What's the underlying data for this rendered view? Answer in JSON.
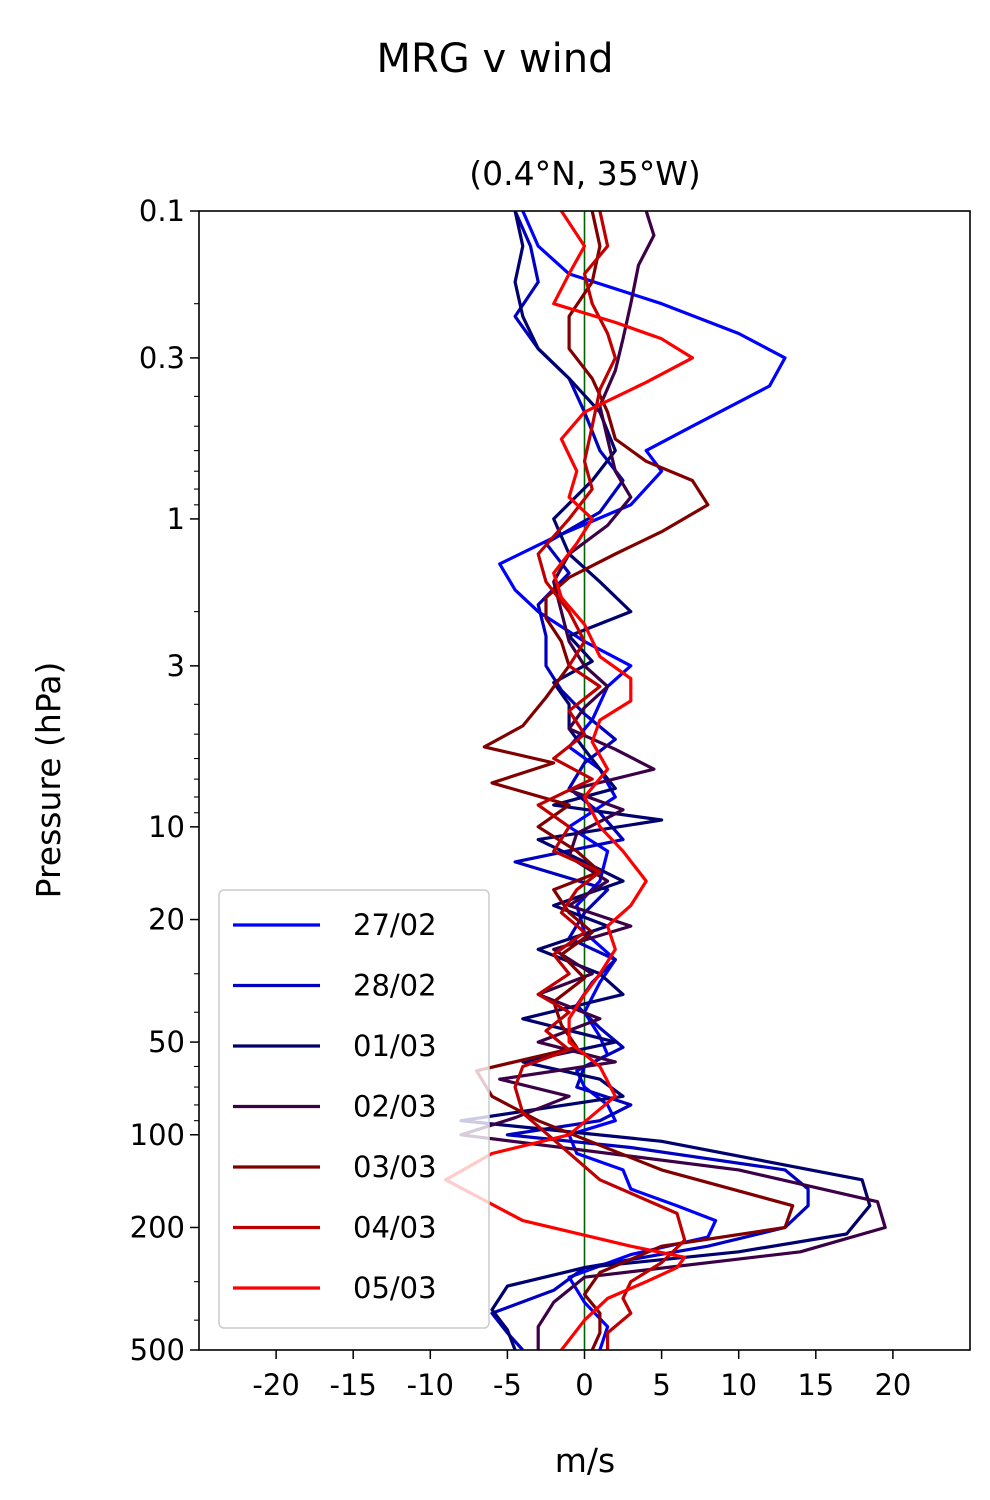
{
  "chart_data": {
    "type": "line",
    "suptitle": "MRG v wind",
    "title": "(0.4°N, 35°W)",
    "xlabel": "m/s",
    "ylabel": "Pressure (hPa)",
    "xlim": [
      -25,
      25
    ],
    "ylim": [
      500,
      0.1
    ],
    "yscale": "log",
    "xticks": [
      -20,
      -15,
      -10,
      -5,
      0,
      5,
      10,
      15,
      20
    ],
    "xtick_labels": [
      "-20",
      "-15",
      "-10",
      "-5",
      "0",
      "5",
      "10",
      "15",
      "20"
    ],
    "yticks": [
      0.1,
      0.3,
      1,
      3,
      10,
      20,
      50,
      100,
      200,
      500
    ],
    "ytick_labels": [
      "0.1",
      "0.3",
      "1",
      "3",
      "10",
      "20",
      "50",
      "100",
      "200",
      "500"
    ],
    "zero_line_color": "#006400",
    "legend_position": "lower-left",
    "series": [
      {
        "name": "27/02",
        "color": "#0000ff",
        "v": [
          -4,
          -3,
          -1,
          5,
          10,
          13,
          12,
          7,
          4,
          5,
          3,
          -2,
          -5.5,
          -4.5,
          -3,
          0,
          3,
          1.5,
          0.5,
          -1,
          1,
          2,
          -1,
          1.5,
          1,
          -0.5,
          0,
          2,
          1,
          0,
          1,
          1.5,
          -0.5,
          0,
          1.5,
          2,
          -1,
          -0.5,
          2.5,
          3,
          6,
          8.5,
          8,
          3,
          -1,
          0,
          1.5,
          1
        ],
        "p": [
          0.1,
          0.13,
          0.16,
          0.2,
          0.25,
          0.3,
          0.37,
          0.5,
          0.6,
          0.7,
          0.9,
          1.15,
          1.4,
          1.7,
          2,
          2.5,
          3,
          3.5,
          4.5,
          5.5,
          6.5,
          8,
          10,
          12,
          15,
          18,
          22,
          27,
          32,
          40,
          48,
          55,
          62,
          70,
          80,
          90,
          100,
          115,
          130,
          150,
          170,
          190,
          215,
          245,
          290,
          350,
          420,
          500
        ]
      },
      {
        "name": "28/02",
        "color": "#0000c0",
        "v": [
          -4.5,
          -3.5,
          -3,
          -4.5,
          -3,
          -1,
          0,
          1,
          2.5,
          1,
          -2.5,
          -1,
          -3,
          -2.5,
          -2.5,
          -1.5,
          0,
          2,
          0,
          -1,
          1,
          2.5,
          -4.5,
          1.5,
          0,
          -1,
          2,
          0.5,
          -0.5,
          1,
          2.5,
          0,
          -0.5,
          3,
          1,
          -5,
          3,
          13,
          14.5,
          14.5,
          13,
          8,
          0,
          -2,
          -6,
          -5,
          -4
        ],
        "p": [
          0.1,
          0.13,
          0.17,
          0.22,
          0.28,
          0.35,
          0.45,
          0.6,
          0.75,
          0.95,
          1.2,
          1.5,
          1.9,
          2.4,
          3,
          3.6,
          4.3,
          5.2,
          6.2,
          7.5,
          9,
          11,
          13,
          16,
          19,
          23,
          27,
          32,
          38,
          45,
          52,
          60,
          70,
          80,
          90,
          100,
          110,
          130,
          150,
          170,
          200,
          230,
          270,
          320,
          380,
          440,
          500
        ]
      },
      {
        "name": "01/03",
        "color": "#00006e",
        "v": [
          -4.5,
          -4,
          -4.5,
          -4,
          -3,
          -1,
          1,
          2,
          0.5,
          -2,
          -1,
          1,
          3,
          -1,
          0.5,
          -2,
          -1,
          -1,
          0,
          1,
          2,
          -2,
          5,
          -3,
          0,
          2.5,
          -2,
          1.5,
          -3,
          1,
          2.5,
          -4,
          2,
          -4,
          1,
          2.5,
          -8,
          5,
          18,
          18.5,
          17,
          10,
          0,
          -5,
          -6,
          -5,
          -4.5
        ],
        "p": [
          0.1,
          0.13,
          0.17,
          0.22,
          0.28,
          0.35,
          0.45,
          0.6,
          0.75,
          1,
          1.3,
          1.6,
          2,
          2.4,
          2.9,
          3.4,
          4,
          4.8,
          5.6,
          6.5,
          7.5,
          8.5,
          9.5,
          11,
          13,
          15,
          18,
          21,
          25,
          30,
          35,
          42,
          50,
          58,
          66,
          75,
          90,
          105,
          140,
          170,
          210,
          240,
          270,
          310,
          370,
          430,
          500
        ]
      },
      {
        "name": "02/03",
        "color": "#3b0045",
        "v": [
          4,
          4.5,
          3.5,
          3,
          2.5,
          2,
          1,
          1.5,
          2,
          3,
          1.5,
          -1,
          -2,
          -1.5,
          -1,
          0,
          1.5,
          0,
          -1,
          2,
          4.5,
          -1,
          2.5,
          -0.5,
          -1,
          1.5,
          -1,
          3,
          -2,
          0.5,
          -3,
          1,
          -3,
          2,
          -5.5,
          -1,
          -4.5,
          -8,
          10,
          19,
          19.5,
          14,
          0,
          -2,
          -3,
          -3
        ],
        "p": [
          0.1,
          0.12,
          0.15,
          0.2,
          0.26,
          0.33,
          0.43,
          0.55,
          0.7,
          0.85,
          1.05,
          1.3,
          1.6,
          2,
          2.5,
          3,
          3.5,
          4.1,
          4.8,
          5.6,
          6.5,
          7.6,
          8.8,
          10.5,
          12.5,
          15,
          18,
          21,
          25,
          30,
          35,
          42,
          50,
          58,
          66,
          75,
          88,
          100,
          130,
          165,
          200,
          240,
          290,
          350,
          420,
          500
        ]
      },
      {
        "name": "03/03",
        "color": "#800000",
        "v": [
          0.5,
          1,
          0.5,
          -1,
          -1,
          0.5,
          1.5,
          2,
          4,
          7,
          8,
          5,
          2,
          -1,
          -2.5,
          -2.5,
          -1.5,
          -1,
          -2.5,
          -4,
          -6.5,
          -2,
          -6,
          -1,
          -3,
          -0.5,
          1,
          -2,
          -1,
          0.5,
          -1.5,
          0,
          -2,
          -1.5,
          -0.5,
          -7,
          -6,
          -3,
          5,
          13.5,
          13,
          5,
          1,
          0,
          1,
          1,
          0.5
        ],
        "p": [
          0.1,
          0.13,
          0.17,
          0.22,
          0.28,
          0.35,
          0.45,
          0.55,
          0.65,
          0.75,
          0.9,
          1.1,
          1.3,
          1.55,
          1.8,
          2.1,
          2.5,
          3,
          3.8,
          4.7,
          5.5,
          6.2,
          7.2,
          8.5,
          10,
          12,
          14,
          16,
          19,
          22,
          26,
          31,
          37,
          44,
          52,
          62,
          75,
          90,
          130,
          170,
          200,
          230,
          280,
          330,
          380,
          440,
          500
        ]
      },
      {
        "name": "04/03",
        "color": "#c00000",
        "v": [
          1,
          1.5,
          0,
          0.5,
          1.5,
          2,
          1,
          0.5,
          0,
          0.5,
          -1,
          -3,
          -2.5,
          -1,
          0,
          -1,
          1,
          -1,
          0,
          -2,
          0.5,
          -3,
          -1,
          -2,
          1,
          -0.5,
          -1.5,
          0,
          -2,
          -1,
          -3,
          -1,
          -2.5,
          -1,
          -4,
          -4.5,
          -4,
          1,
          6,
          6.5,
          5,
          3,
          2.5,
          3,
          1.5,
          1.5
        ],
        "p": [
          0.1,
          0.13,
          0.16,
          0.2,
          0.25,
          0.3,
          0.38,
          0.5,
          0.65,
          0.8,
          1,
          1.3,
          1.6,
          2,
          2.5,
          3,
          3.5,
          4.2,
          5,
          6,
          7,
          8.5,
          10,
          12,
          14,
          16,
          19,
          22,
          26,
          30,
          35,
          40,
          46,
          53,
          60,
          70,
          85,
          140,
          180,
          220,
          260,
          300,
          340,
          380,
          440,
          500
        ]
      },
      {
        "name": "05/03",
        "color": "#ff0000",
        "v": [
          -1.5,
          0,
          -1,
          -2,
          2,
          5,
          7,
          4,
          0,
          -1.5,
          -0.5,
          -1,
          0.5,
          -0.5,
          -2,
          -1.5,
          0,
          1,
          3,
          3,
          1,
          0.5,
          1.5,
          0,
          1,
          2.5,
          4,
          3,
          1.5,
          2,
          1,
          0,
          -1,
          -1,
          1,
          2,
          -1,
          -6,
          -9,
          -4,
          3,
          6.5,
          6,
          4,
          1.5,
          0,
          -1.5
        ],
        "p": [
          0.1,
          0.13,
          0.16,
          0.2,
          0.23,
          0.26,
          0.3,
          0.36,
          0.45,
          0.55,
          0.7,
          0.85,
          1,
          1.2,
          1.5,
          1.8,
          2.2,
          2.8,
          3.3,
          3.9,
          4.5,
          5.3,
          6.5,
          8,
          10,
          12,
          15,
          18,
          21,
          25,
          30,
          35,
          42,
          50,
          60,
          75,
          100,
          115,
          140,
          190,
          230,
          250,
          270,
          300,
          340,
          400,
          500
        ]
      }
    ]
  }
}
